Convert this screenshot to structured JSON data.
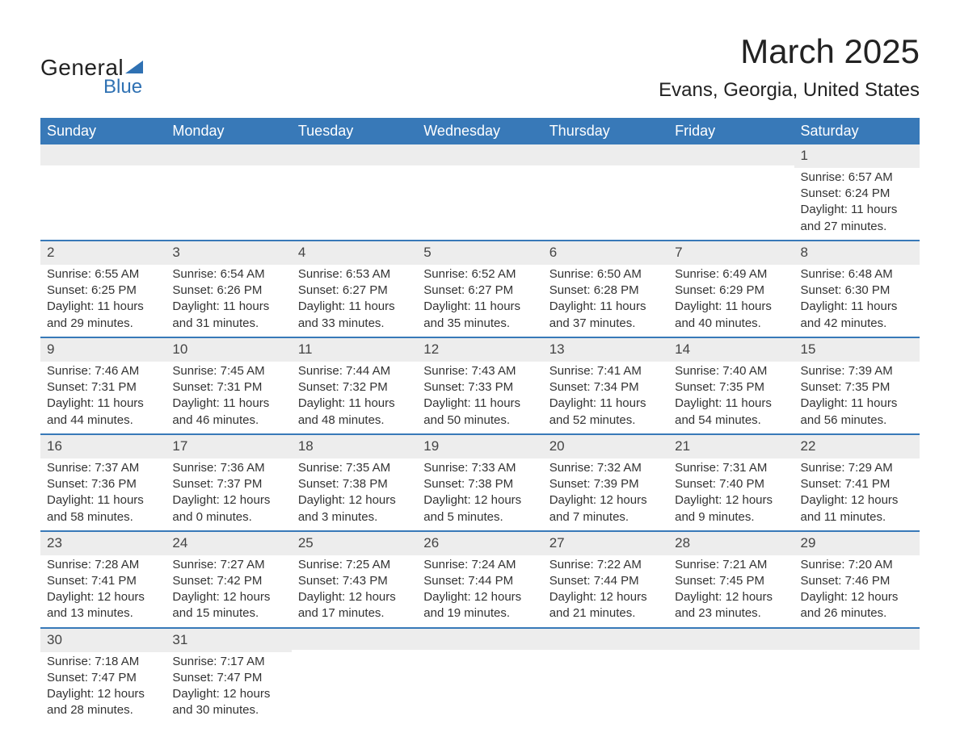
{
  "brand": {
    "word1": "General",
    "word2": "Blue",
    "accent_color": "#2f71b3"
  },
  "title": "March 2025",
  "location": "Evans, Georgia, United States",
  "colors": {
    "header_bg": "#3879b8",
    "header_text": "#ffffff",
    "band_bg": "#ededed",
    "row_border": "#3879b8",
    "body_text": "#333333",
    "page_bg": "#ffffff"
  },
  "fonts": {
    "title_pt": 42,
    "location_pt": 24,
    "dayheader_pt": 18,
    "daynum_pt": 17,
    "body_pt": 15
  },
  "day_headers": [
    "Sunday",
    "Monday",
    "Tuesday",
    "Wednesday",
    "Thursday",
    "Friday",
    "Saturday"
  ],
  "labels": {
    "sunrise": "Sunrise:",
    "sunset": "Sunset:",
    "daylight": "Daylight:"
  },
  "weeks": [
    [
      null,
      null,
      null,
      null,
      null,
      null,
      {
        "n": "1",
        "sr": "6:57 AM",
        "ss": "6:24 PM",
        "dl": "11 hours and 27 minutes."
      }
    ],
    [
      {
        "n": "2",
        "sr": "6:55 AM",
        "ss": "6:25 PM",
        "dl": "11 hours and 29 minutes."
      },
      {
        "n": "3",
        "sr": "6:54 AM",
        "ss": "6:26 PM",
        "dl": "11 hours and 31 minutes."
      },
      {
        "n": "4",
        "sr": "6:53 AM",
        "ss": "6:27 PM",
        "dl": "11 hours and 33 minutes."
      },
      {
        "n": "5",
        "sr": "6:52 AM",
        "ss": "6:27 PM",
        "dl": "11 hours and 35 minutes."
      },
      {
        "n": "6",
        "sr": "6:50 AM",
        "ss": "6:28 PM",
        "dl": "11 hours and 37 minutes."
      },
      {
        "n": "7",
        "sr": "6:49 AM",
        "ss": "6:29 PM",
        "dl": "11 hours and 40 minutes."
      },
      {
        "n": "8",
        "sr": "6:48 AM",
        "ss": "6:30 PM",
        "dl": "11 hours and 42 minutes."
      }
    ],
    [
      {
        "n": "9",
        "sr": "7:46 AM",
        "ss": "7:31 PM",
        "dl": "11 hours and 44 minutes."
      },
      {
        "n": "10",
        "sr": "7:45 AM",
        "ss": "7:31 PM",
        "dl": "11 hours and 46 minutes."
      },
      {
        "n": "11",
        "sr": "7:44 AM",
        "ss": "7:32 PM",
        "dl": "11 hours and 48 minutes."
      },
      {
        "n": "12",
        "sr": "7:43 AM",
        "ss": "7:33 PM",
        "dl": "11 hours and 50 minutes."
      },
      {
        "n": "13",
        "sr": "7:41 AM",
        "ss": "7:34 PM",
        "dl": "11 hours and 52 minutes."
      },
      {
        "n": "14",
        "sr": "7:40 AM",
        "ss": "7:35 PM",
        "dl": "11 hours and 54 minutes."
      },
      {
        "n": "15",
        "sr": "7:39 AM",
        "ss": "7:35 PM",
        "dl": "11 hours and 56 minutes."
      }
    ],
    [
      {
        "n": "16",
        "sr": "7:37 AM",
        "ss": "7:36 PM",
        "dl": "11 hours and 58 minutes."
      },
      {
        "n": "17",
        "sr": "7:36 AM",
        "ss": "7:37 PM",
        "dl": "12 hours and 0 minutes."
      },
      {
        "n": "18",
        "sr": "7:35 AM",
        "ss": "7:38 PM",
        "dl": "12 hours and 3 minutes."
      },
      {
        "n": "19",
        "sr": "7:33 AM",
        "ss": "7:38 PM",
        "dl": "12 hours and 5 minutes."
      },
      {
        "n": "20",
        "sr": "7:32 AM",
        "ss": "7:39 PM",
        "dl": "12 hours and 7 minutes."
      },
      {
        "n": "21",
        "sr": "7:31 AM",
        "ss": "7:40 PM",
        "dl": "12 hours and 9 minutes."
      },
      {
        "n": "22",
        "sr": "7:29 AM",
        "ss": "7:41 PM",
        "dl": "12 hours and 11 minutes."
      }
    ],
    [
      {
        "n": "23",
        "sr": "7:28 AM",
        "ss": "7:41 PM",
        "dl": "12 hours and 13 minutes."
      },
      {
        "n": "24",
        "sr": "7:27 AM",
        "ss": "7:42 PM",
        "dl": "12 hours and 15 minutes."
      },
      {
        "n": "25",
        "sr": "7:25 AM",
        "ss": "7:43 PM",
        "dl": "12 hours and 17 minutes."
      },
      {
        "n": "26",
        "sr": "7:24 AM",
        "ss": "7:44 PM",
        "dl": "12 hours and 19 minutes."
      },
      {
        "n": "27",
        "sr": "7:22 AM",
        "ss": "7:44 PM",
        "dl": "12 hours and 21 minutes."
      },
      {
        "n": "28",
        "sr": "7:21 AM",
        "ss": "7:45 PM",
        "dl": "12 hours and 23 minutes."
      },
      {
        "n": "29",
        "sr": "7:20 AM",
        "ss": "7:46 PM",
        "dl": "12 hours and 26 minutes."
      }
    ],
    [
      {
        "n": "30",
        "sr": "7:18 AM",
        "ss": "7:47 PM",
        "dl": "12 hours and 28 minutes."
      },
      {
        "n": "31",
        "sr": "7:17 AM",
        "ss": "7:47 PM",
        "dl": "12 hours and 30 minutes."
      },
      null,
      null,
      null,
      null,
      null
    ]
  ]
}
